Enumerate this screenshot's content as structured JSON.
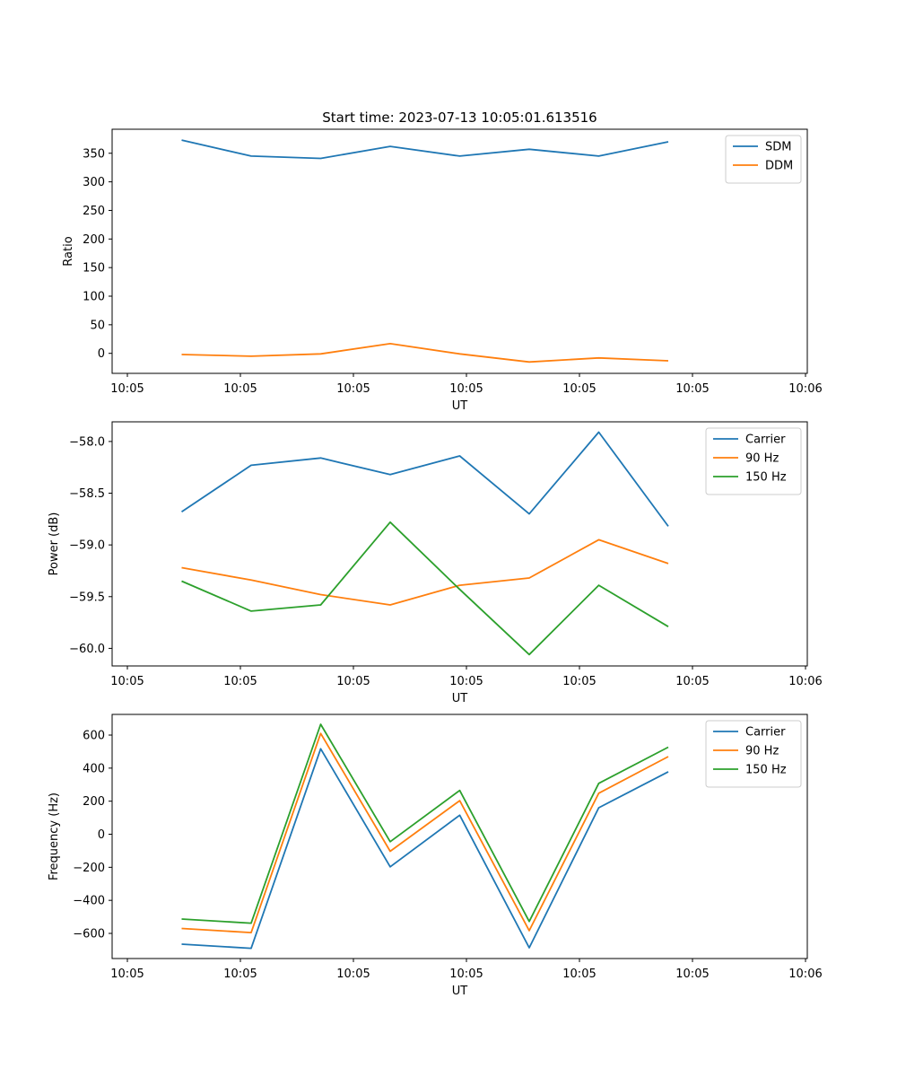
{
  "figure_title": "Start time: 2023-07-13 10:05:01.613516",
  "chart_data": [
    {
      "type": "line",
      "title": "Start time: 2023-07-13 10:05:01.613516",
      "xlabel": "UT",
      "ylabel": "Ratio",
      "x_tick_labels": [
        "10:05",
        "10:05",
        "10:05",
        "10:05",
        "10:05",
        "10:05",
        "10:06"
      ],
      "y_ticks": [
        0,
        50,
        100,
        150,
        200,
        250,
        300,
        350
      ],
      "ylim": [
        -35,
        392
      ],
      "legend": "top-right",
      "grid": false,
      "x": [
        1,
        2,
        3,
        4,
        5,
        6,
        7,
        8
      ],
      "xlim": [
        0,
        10
      ],
      "series": [
        {
          "name": "SDM",
          "color": "#1f77b4",
          "values": [
            373,
            345,
            341,
            362,
            345,
            357,
            345,
            370
          ]
        },
        {
          "name": "DDM",
          "color": "#ff7f0e",
          "values": [
            -2,
            -5,
            -1,
            17,
            -1,
            -15,
            -8,
            -13
          ]
        }
      ]
    },
    {
      "type": "line",
      "xlabel": "UT",
      "ylabel": "Power (dB)",
      "x_tick_labels": [
        "10:05",
        "10:05",
        "10:05",
        "10:05",
        "10:05",
        "10:05",
        "10:06"
      ],
      "y_ticks": [
        -60.0,
        -59.5,
        -59.0,
        -58.5,
        -58.0
      ],
      "y_tick_labels": [
        "−60.0",
        "−59.5",
        "−59.0",
        "−58.5",
        "−58.0"
      ],
      "ylim": [
        -60.17,
        -57.81
      ],
      "legend": "top-right",
      "grid": false,
      "x": [
        1,
        2,
        3,
        4,
        5,
        6,
        7,
        8
      ],
      "xlim": [
        0,
        10
      ],
      "series": [
        {
          "name": "Carrier",
          "color": "#1f77b4",
          "values": [
            -58.68,
            -58.23,
            -58.16,
            -58.32,
            -58.14,
            -58.7,
            -57.91,
            -58.82
          ]
        },
        {
          "name": "90 Hz",
          "color": "#ff7f0e",
          "values": [
            -59.22,
            -59.34,
            -59.48,
            -59.58,
            -59.39,
            -59.32,
            -58.95,
            -59.18
          ]
        },
        {
          "name": "150 Hz",
          "color": "#2ca02c",
          "values": [
            -59.35,
            -59.64,
            -59.58,
            -58.78,
            -59.43,
            -60.06,
            -59.39,
            -59.79
          ]
        }
      ]
    },
    {
      "type": "line",
      "xlabel": "UT",
      "ylabel": "Frequency (Hz)",
      "x_tick_labels": [
        "10:05",
        "10:05",
        "10:05",
        "10:05",
        "10:05",
        "10:05",
        "10:06"
      ],
      "y_ticks": [
        -600,
        -400,
        -200,
        0,
        200,
        400,
        600
      ],
      "y_tick_labels": [
        "−600",
        "−400",
        "−200",
        "0",
        "200",
        "400",
        "600"
      ],
      "ylim": [
        -752,
        725
      ],
      "legend": "top-right",
      "grid": false,
      "x": [
        1,
        2,
        3,
        4,
        5,
        6,
        7,
        8
      ],
      "xlim": [
        0,
        10
      ],
      "series": [
        {
          "name": "Carrier",
          "color": "#1f77b4",
          "values": [
            -665,
            -690,
            517,
            -197,
            115,
            -687,
            160,
            378
          ]
        },
        {
          "name": "90 Hz",
          "color": "#ff7f0e",
          "values": [
            -570,
            -595,
            610,
            -103,
            203,
            -583,
            248,
            470
          ]
        },
        {
          "name": "150 Hz",
          "color": "#2ca02c",
          "values": [
            -513,
            -538,
            665,
            -45,
            265,
            -528,
            308,
            527
          ]
        }
      ]
    }
  ]
}
